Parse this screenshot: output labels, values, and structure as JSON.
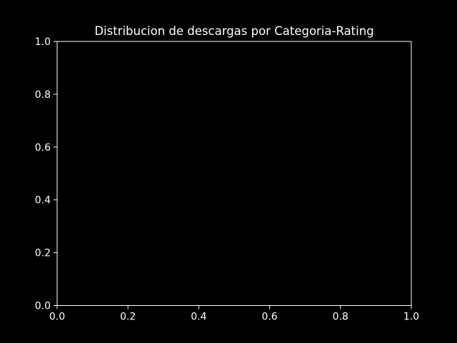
{
  "chart_data": {
    "type": "bar",
    "title": "Distribucion de descargas por Categoria-Rating",
    "xlabel": "",
    "ylabel": "",
    "xlim": [
      0.0,
      1.0
    ],
    "ylim": [
      0.0,
      1.0
    ],
    "xticks": [
      0.0,
      0.2,
      0.4,
      0.6,
      0.8,
      1.0
    ],
    "yticks": [
      0.0,
      0.2,
      0.4,
      0.6,
      0.8,
      1.0
    ],
    "xtick_labels": [
      "0.0",
      "0.2",
      "0.4",
      "0.6",
      "0.8",
      "1.0"
    ],
    "ytick_labels": [
      "0.0",
      "0.2",
      "0.4",
      "0.6",
      "0.8",
      "1.0"
    ],
    "categories": [],
    "values": [],
    "grid": false,
    "colors": {
      "background": "#000000",
      "axes": "#ffffff",
      "text": "#ffffff"
    }
  }
}
